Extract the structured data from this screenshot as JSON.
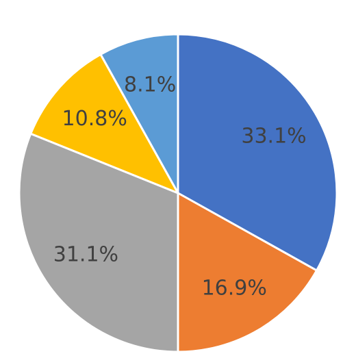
{
  "chart_data": {
    "type": "pie",
    "values": [
      33.1,
      16.9,
      31.1,
      10.8,
      8.1
    ],
    "value_labels": [
      "33.1%",
      "16.9%",
      "31.1%",
      "10.8%",
      "8.1%"
    ],
    "colors": [
      "#4472c4",
      "#ed7d31",
      "#a5a5a5",
      "#ffc000",
      "#5b9bd5"
    ]
  }
}
